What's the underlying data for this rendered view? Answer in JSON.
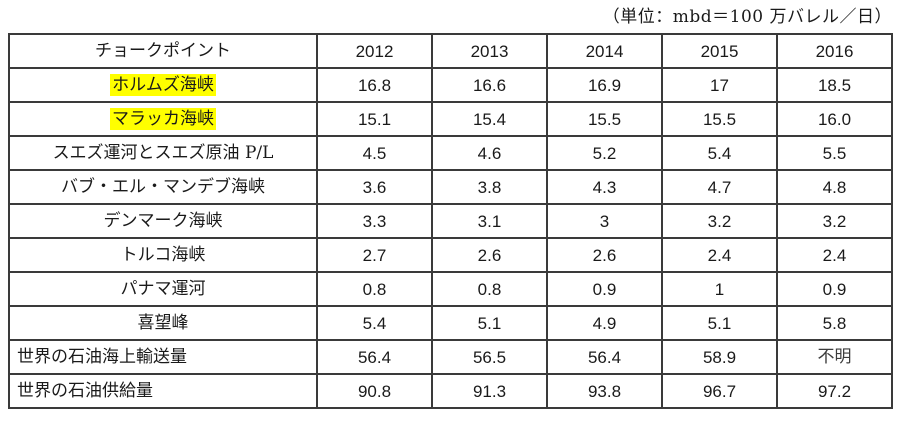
{
  "unit_note": "（単位：mbd＝100 万バレル／日）",
  "colors": {
    "highlight": "#ffff00",
    "border": "#3a3a3a",
    "text": "#1a1a1a"
  },
  "table": {
    "header": [
      "チョークポイント",
      "2012",
      "2013",
      "2014",
      "2015",
      "2016"
    ],
    "rows": [
      {
        "label": "ホルムズ海峡",
        "values": [
          "16.8",
          "16.6",
          "16.9",
          "17",
          "18.5"
        ],
        "highlight": true,
        "align": "center"
      },
      {
        "label": "マラッカ海峡",
        "values": [
          "15.1",
          "15.4",
          "15.5",
          "15.5",
          "16.0"
        ],
        "highlight": true,
        "align": "center"
      },
      {
        "label": "スエズ運河とスエズ原油 P/L",
        "values": [
          "4.5",
          "4.6",
          "5.2",
          "5.4",
          "5.5"
        ],
        "highlight": false,
        "align": "center"
      },
      {
        "label": "バブ・エル・マンデブ海峡",
        "values": [
          "3.6",
          "3.8",
          "4.3",
          "4.7",
          "4.8"
        ],
        "highlight": false,
        "align": "center"
      },
      {
        "label": "デンマーク海峡",
        "values": [
          "3.3",
          "3.1",
          "3",
          "3.2",
          "3.2"
        ],
        "highlight": false,
        "align": "center"
      },
      {
        "label": "トルコ海峡",
        "values": [
          "2.7",
          "2.6",
          "2.6",
          "2.4",
          "2.4"
        ],
        "highlight": false,
        "align": "center"
      },
      {
        "label": "パナマ運河",
        "values": [
          "0.8",
          "0.8",
          "0.9",
          "1",
          "0.9"
        ],
        "highlight": false,
        "align": "center"
      },
      {
        "label": "喜望峰",
        "values": [
          "5.4",
          "5.1",
          "4.9",
          "5.1",
          "5.8"
        ],
        "highlight": false,
        "align": "center"
      },
      {
        "label": "世界の石油海上輸送量",
        "values": [
          "56.4",
          "56.5",
          "56.4",
          "58.9",
          "不明"
        ],
        "highlight": false,
        "align": "left"
      },
      {
        "label": "世界の石油供給量",
        "values": [
          "90.8",
          "91.3",
          "93.8",
          "96.7",
          "97.2"
        ],
        "highlight": false,
        "align": "left"
      }
    ]
  },
  "chart_data": {
    "type": "table",
    "title": "",
    "unit_note": "（単位：mbd＝100 万バレル／日）",
    "unit": "mbd (100万バレル/日)",
    "row_header": "チョークポイント",
    "categories": [
      "2012",
      "2013",
      "2014",
      "2015",
      "2016"
    ],
    "series": [
      {
        "name": "ホルムズ海峡",
        "values": [
          16.8,
          16.6,
          16.9,
          17,
          18.5
        ]
      },
      {
        "name": "マラッカ海峡",
        "values": [
          15.1,
          15.4,
          15.5,
          15.5,
          16.0
        ]
      },
      {
        "name": "スエズ運河とスエズ原油 P/L",
        "values": [
          4.5,
          4.6,
          5.2,
          5.4,
          5.5
        ]
      },
      {
        "name": "バブ・エル・マンデブ海峡",
        "values": [
          3.6,
          3.8,
          4.3,
          4.7,
          4.8
        ]
      },
      {
        "name": "デンマーク海峡",
        "values": [
          3.3,
          3.1,
          3,
          3.2,
          3.2
        ]
      },
      {
        "name": "トルコ海峡",
        "values": [
          2.7,
          2.6,
          2.6,
          2.4,
          2.4
        ]
      },
      {
        "name": "パナマ運河",
        "values": [
          0.8,
          0.8,
          0.9,
          1,
          0.9
        ]
      },
      {
        "name": "喜望峰",
        "values": [
          5.4,
          5.1,
          4.9,
          5.1,
          5.8
        ]
      },
      {
        "name": "世界の石油海上輸送量",
        "values": [
          56.4,
          56.5,
          56.4,
          58.9,
          "不明"
        ]
      },
      {
        "name": "世界の石油供給量",
        "values": [
          90.8,
          91.3,
          93.8,
          96.7,
          97.2
        ]
      }
    ],
    "highlighted_rows": [
      "ホルムズ海峡",
      "マラッカ海峡"
    ]
  }
}
